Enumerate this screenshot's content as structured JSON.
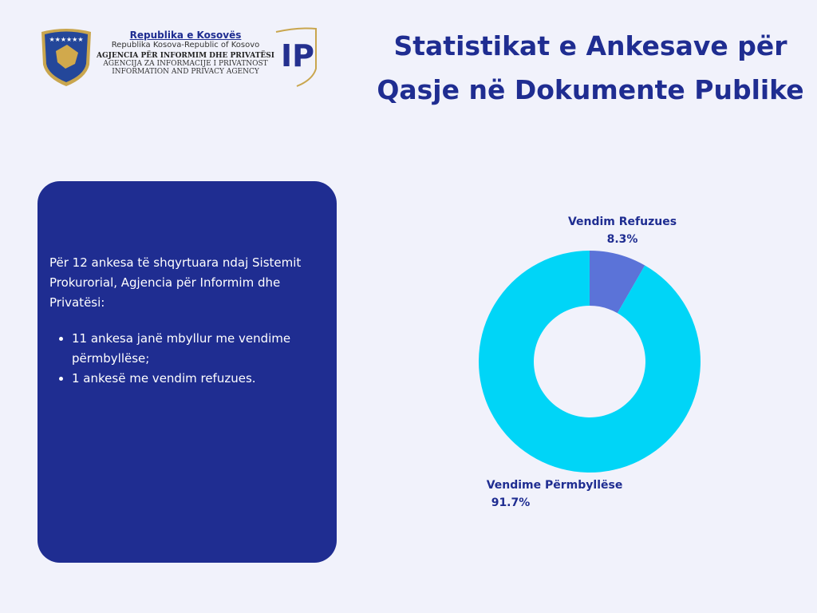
{
  "header": {
    "line1": "Republika e Kosovës",
    "line2": "Republika Kosova-Republic of Kosovo",
    "line3": "AGJENCIA PËR INFORMIM DHE PRIVATËSI",
    "line4": "AGENCIJA ZA INFORMACIJE I PRIVATNOST",
    "line5": "INFORMATION AND PRIVACY AGENCY",
    "logo_text": "IP"
  },
  "title": "Statistikat e Ankesave për Qasje në Dokumente Publike",
  "panel": {
    "intro": "Për 12 ankesa të shqyrtuara ndaj Sistemit Prokurorial, Agjencia për Informim dhe Privatësi:",
    "bullets": [
      "11 ankesa janë mbyllur me vendime përmbyllëse;",
      "1 ankesë me vendim refuzues."
    ]
  },
  "chart_data": {
    "type": "pie",
    "donut": true,
    "slices": [
      {
        "label": "Vendim Refuzues",
        "value": 8.3,
        "value_label": "8.3%",
        "color": "#5b73d8"
      },
      {
        "label": "Vendime Përmbyllëse",
        "value": 91.7,
        "value_label": "91.7%",
        "color": "#00d5f7"
      }
    ]
  }
}
